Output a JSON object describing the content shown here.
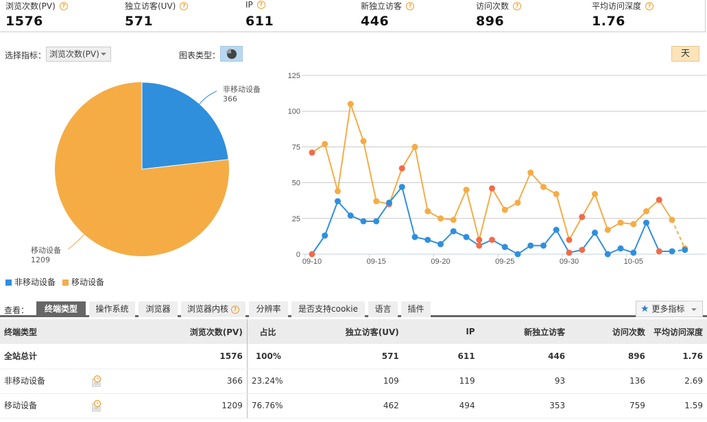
{
  "summary": {
    "metrics": [
      {
        "label": "浏览次数(PV)",
        "value": "1576",
        "help": "?"
      },
      {
        "label": "独立访客(UV)",
        "value": "571",
        "help": "?"
      },
      {
        "label": "IP",
        "value": "611",
        "help": "?"
      },
      {
        "label": "新独立访客",
        "value": "446",
        "help": "?"
      },
      {
        "label": "访问次数",
        "value": "896",
        "help": "?"
      },
      {
        "label": "平均访问深度",
        "value": "1.76",
        "help": "?"
      }
    ]
  },
  "controls": {
    "metric_label": "选择指标：",
    "metric_selected": "浏览次数(PV)",
    "chart_type_label": "图表类型：",
    "chart_type_icon": "pie-chart-icon",
    "granularity_button": "天"
  },
  "pie": {
    "slices": [
      {
        "name": "非移动设备",
        "value": "366",
        "color": "#2f8fdd"
      },
      {
        "name": "移动设备",
        "value": "1209",
        "color": "#f5ac45"
      }
    ]
  },
  "legend": [
    {
      "name": "非移动设备",
      "color": "#2f8fdd"
    },
    {
      "name": "移动设备",
      "color": "#f5ac45"
    }
  ],
  "chart_data": [
    {
      "type": "pie",
      "title": "",
      "categories": [
        "非移动设备",
        "移动设备"
      ],
      "values": [
        366,
        1209
      ],
      "colors": [
        "#2f8fdd",
        "#f5ac45"
      ],
      "legend_position": "bottom-left"
    },
    {
      "type": "line",
      "title": "",
      "xlabel": "",
      "ylabel": "",
      "ylim": [
        0,
        125
      ],
      "yticks": [
        0,
        25,
        50,
        75,
        100,
        125
      ],
      "xtick_labels": [
        "09-10",
        "09-15",
        "09-20",
        "09-25",
        "09-30",
        "10-05"
      ],
      "grid": true,
      "x": [
        "09-10",
        "09-11",
        "09-12",
        "09-13",
        "09-14",
        "09-15",
        "09-16",
        "09-17",
        "09-18",
        "09-19",
        "09-20",
        "09-21",
        "09-22",
        "09-23",
        "09-24",
        "09-25",
        "09-26",
        "09-27",
        "09-28",
        "09-29",
        "09-30",
        "10-01",
        "10-02",
        "10-03",
        "10-04",
        "10-05",
        "10-06",
        "10-07",
        "10-08",
        "10-09"
      ],
      "series": [
        {
          "name": "移动设备",
          "color": "#f5ac45",
          "values": [
            71,
            77,
            44,
            105,
            79,
            37,
            35,
            60,
            75,
            30,
            25,
            24,
            45,
            10,
            46,
            31,
            36,
            57,
            47,
            42,
            10,
            26,
            42,
            17,
            22,
            21,
            30,
            38,
            24,
            4
          ]
        },
        {
          "name": "非移动设备",
          "color": "#2f8fdd",
          "values": [
            0,
            13,
            37,
            27,
            23,
            23,
            36,
            47,
            12,
            10,
            7,
            16,
            12,
            6,
            10,
            5,
            0,
            6,
            6,
            17,
            1,
            3,
            15,
            0,
            4,
            1,
            22,
            2,
            2,
            3
          ]
        }
      ],
      "highlight_color": "#f26b4a",
      "last_segment_dashed": true
    }
  ],
  "tabs": {
    "view_label": "查看：",
    "items": [
      {
        "label": "终端类型",
        "active": true
      },
      {
        "label": "操作系统"
      },
      {
        "label": "浏览器"
      },
      {
        "label": "浏览器内核",
        "help": "?"
      },
      {
        "label": "分辨率"
      },
      {
        "label": "是否支持cookie"
      },
      {
        "label": "语言"
      },
      {
        "label": "插件"
      }
    ],
    "more_button": "更多指标"
  },
  "table": {
    "headers": [
      "终端类型",
      "浏览次数(PV)",
      "占比",
      "独立访客(UV)",
      "IP",
      "新独立访客",
      "访问次数",
      "平均访问深度"
    ],
    "rows": [
      {
        "name": "全站总计",
        "pv": "1576",
        "ratio": "100%",
        "uv": "571",
        "ip": "611",
        "new_uv": "446",
        "visits": "896",
        "depth": "1.76"
      },
      {
        "name": "非移动设备",
        "pv": "366",
        "ratio": "23.24%",
        "uv": "109",
        "ip": "119",
        "new_uv": "93",
        "visits": "136",
        "depth": "2.69"
      },
      {
        "name": "移动设备",
        "pv": "1209",
        "ratio": "76.76%",
        "uv": "462",
        "ip": "494",
        "new_uv": "353",
        "visits": "759",
        "depth": "1.59"
      }
    ]
  }
}
